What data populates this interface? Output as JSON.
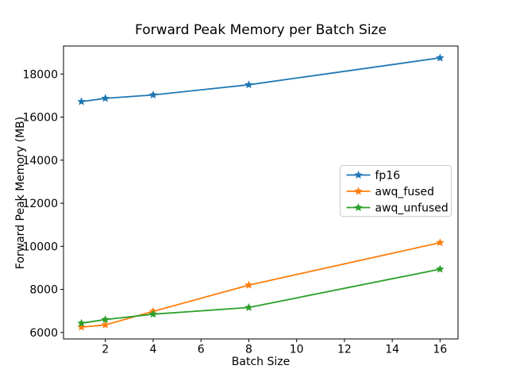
{
  "chart_data": {
    "type": "line",
    "title": "Forward Peak Memory per Batch Size",
    "xlabel": "Batch Size",
    "ylabel": "Forward Peak Memory (MB)",
    "x": [
      1,
      2,
      4,
      8,
      16
    ],
    "series": [
      {
        "name": "fp16",
        "color": "#1f77b4",
        "values": [
          16720,
          16870,
          17030,
          17500,
          18750
        ]
      },
      {
        "name": "awq_fused",
        "color": "#ff7f0e",
        "values": [
          6250,
          6350,
          6980,
          8200,
          10170
        ]
      },
      {
        "name": "awq_unfused",
        "color": "#2ca02c",
        "values": [
          6430,
          6600,
          6850,
          7160,
          8940
        ]
      }
    ],
    "xticks": [
      2,
      4,
      6,
      8,
      10,
      12,
      14,
      16
    ],
    "yticks": [
      6000,
      8000,
      10000,
      12000,
      14000,
      16000,
      18000
    ],
    "xlim": [
      0.25,
      16.75
    ],
    "ylim": [
      5700,
      19300
    ],
    "grid": false,
    "marker": "star",
    "legend_position": "center right",
    "legend_labels": [
      "fp16",
      "awq_fused",
      "awq_unfused"
    ],
    "axis_color": "#000000",
    "legend_border_color": "#cccccc",
    "background_color": "#ffffff"
  }
}
